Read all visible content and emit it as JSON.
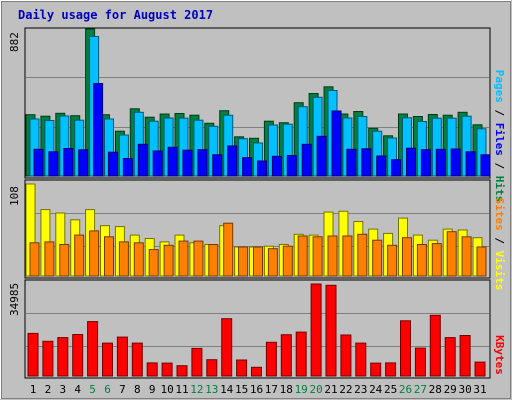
{
  "chart_data": {
    "type": "bar",
    "title": "Daily usage for August 2017",
    "categories": [
      "1",
      "2",
      "3",
      "4",
      "5",
      "6",
      "7",
      "8",
      "9",
      "10",
      "11",
      "12",
      "13",
      "14",
      "15",
      "16",
      "17",
      "18",
      "19",
      "20",
      "21",
      "22",
      "23",
      "24",
      "25",
      "26",
      "27",
      "28",
      "29",
      "30",
      "31"
    ],
    "weekend_days": [
      "5",
      "6",
      "12",
      "13",
      "19",
      "20",
      "26",
      "27"
    ],
    "panels": [
      {
        "id": "hits",
        "ymax_label": "882",
        "ylim": [
          0,
          882
        ],
        "side_label": [
          "Pages",
          "Files",
          "Hits"
        ],
        "series": [
          {
            "name": "Hits",
            "color": "#008040",
            "values": [
              368,
              359,
              376,
              362,
              882,
              368,
              269,
              403,
              353,
              372,
              375,
              365,
              316,
              392,
              235,
              226,
              329,
              320,
              440,
              495,
              535,
              372,
              387,
              286,
              241,
              372,
              357,
              369,
              365,
              382,
              307
            ]
          },
          {
            "name": "Files",
            "color": "#00c0ff",
            "values": [
              342,
              333,
              360,
              335,
              837,
              342,
              246,
              382,
              329,
              348,
              347,
              335,
              298,
              364,
              224,
              198,
              306,
              311,
              416,
              472,
              513,
              348,
              357,
              269,
              228,
              349,
              327,
              347,
              347,
              359,
              283
            ]
          },
          {
            "name": "Pages",
            "color": "#0000ff",
            "values": [
              160,
              145,
              165,
              157,
              555,
              143,
              105,
              190,
              150,
              172,
              155,
              158,
              127,
              180,
              110,
              90,
              118,
              123,
              190,
              238,
              390,
              160,
              163,
              120,
              98,
              167,
              158,
              160,
              162,
              145,
              127
            ]
          }
        ]
      },
      {
        "id": "visits",
        "ymax_label": "108",
        "ylim": [
          0,
          108
        ],
        "side_label": [
          "Sites",
          "Visits"
        ],
        "series": [
          {
            "name": "Visits",
            "color": "#ffff00",
            "values": [
              108,
              78,
              74,
              66,
              78,
              59,
              58,
              48,
              44,
              40,
              48,
              39,
              37,
              59,
              34,
              34,
              35,
              37,
              49,
              48,
              75,
              76,
              64,
              55,
              50,
              68,
              48,
              42,
              55,
              54,
              45
            ]
          },
          {
            "name": "Sites",
            "color": "#ff8000",
            "values": [
              39,
              40,
              37,
              48,
              53,
              46,
              40,
              39,
              31,
              36,
              41,
              41,
              37,
              62,
              34,
              34,
              32,
              35,
              47,
              46,
              47,
              47,
              49,
              42,
              36,
              45,
              37,
              38,
              52,
              46,
              34
            ]
          }
        ]
      },
      {
        "id": "kbytes",
        "ymax_label": "34985",
        "ylim": [
          0,
          34985
        ],
        "side_label": [
          "KBytes"
        ],
        "series": [
          {
            "name": "KBytes",
            "color": "#ff0000",
            "values": [
              16200,
              13200,
              14600,
              15800,
              20700,
              12500,
              14800,
              12500,
              5000,
              4900,
              3900,
              10500,
              6200,
              21800,
              6100,
              3300,
              12800,
              15700,
              16700,
              34985,
              34500,
              15600,
              12500,
              4900,
              5000,
              21000,
              10600,
              23100,
              14600,
              15400,
              5300
            ]
          }
        ]
      }
    ]
  }
}
